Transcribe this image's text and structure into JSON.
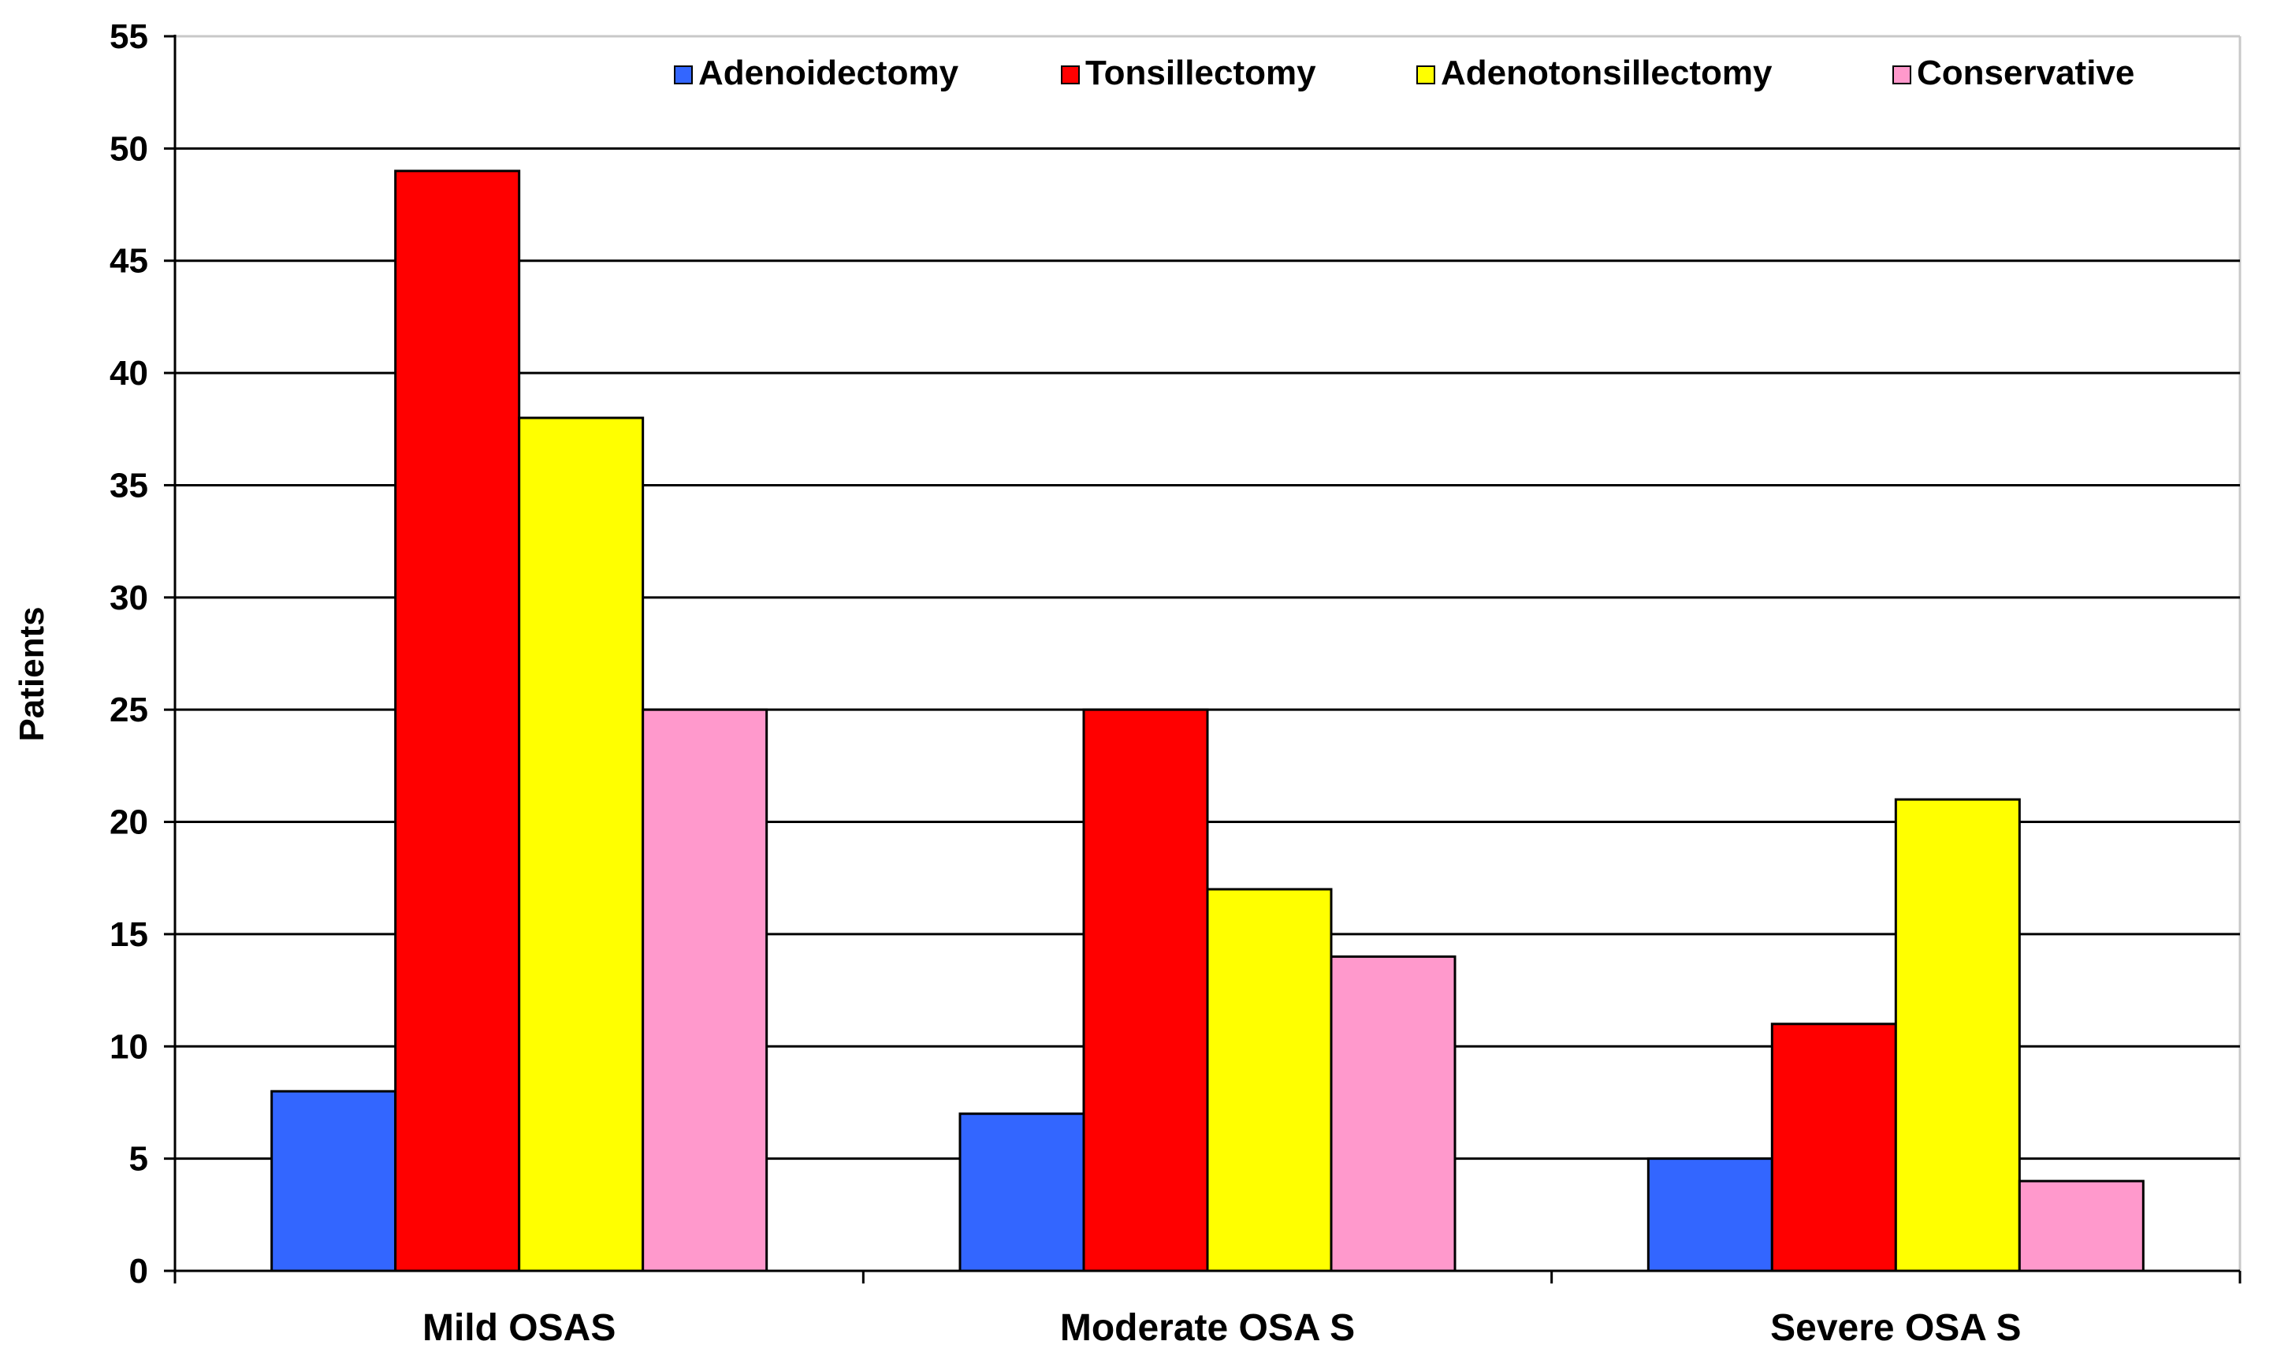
{
  "chart_data": {
    "type": "bar",
    "title": "",
    "xlabel": "",
    "ylabel": "Patients",
    "ylim": [
      0,
      55
    ],
    "ytick_step": 5,
    "grid": true,
    "legend_position": "top-right",
    "categories": [
      "Mild OSAS",
      "Moderate OSA S",
      "Severe OSA S"
    ],
    "series": [
      {
        "name": "Adenoidectomy",
        "color": "#3366ff",
        "values": [
          8,
          7,
          5
        ]
      },
      {
        "name": "Tonsillectomy",
        "color": "#ff0000",
        "values": [
          49,
          25,
          11
        ]
      },
      {
        "name": "Adenotonsillectomy",
        "color": "#ffff00",
        "values": [
          38,
          17,
          21
        ]
      },
      {
        "name": "Conservative",
        "color": "#ff99cc",
        "values": [
          25,
          14,
          4
        ]
      }
    ]
  }
}
